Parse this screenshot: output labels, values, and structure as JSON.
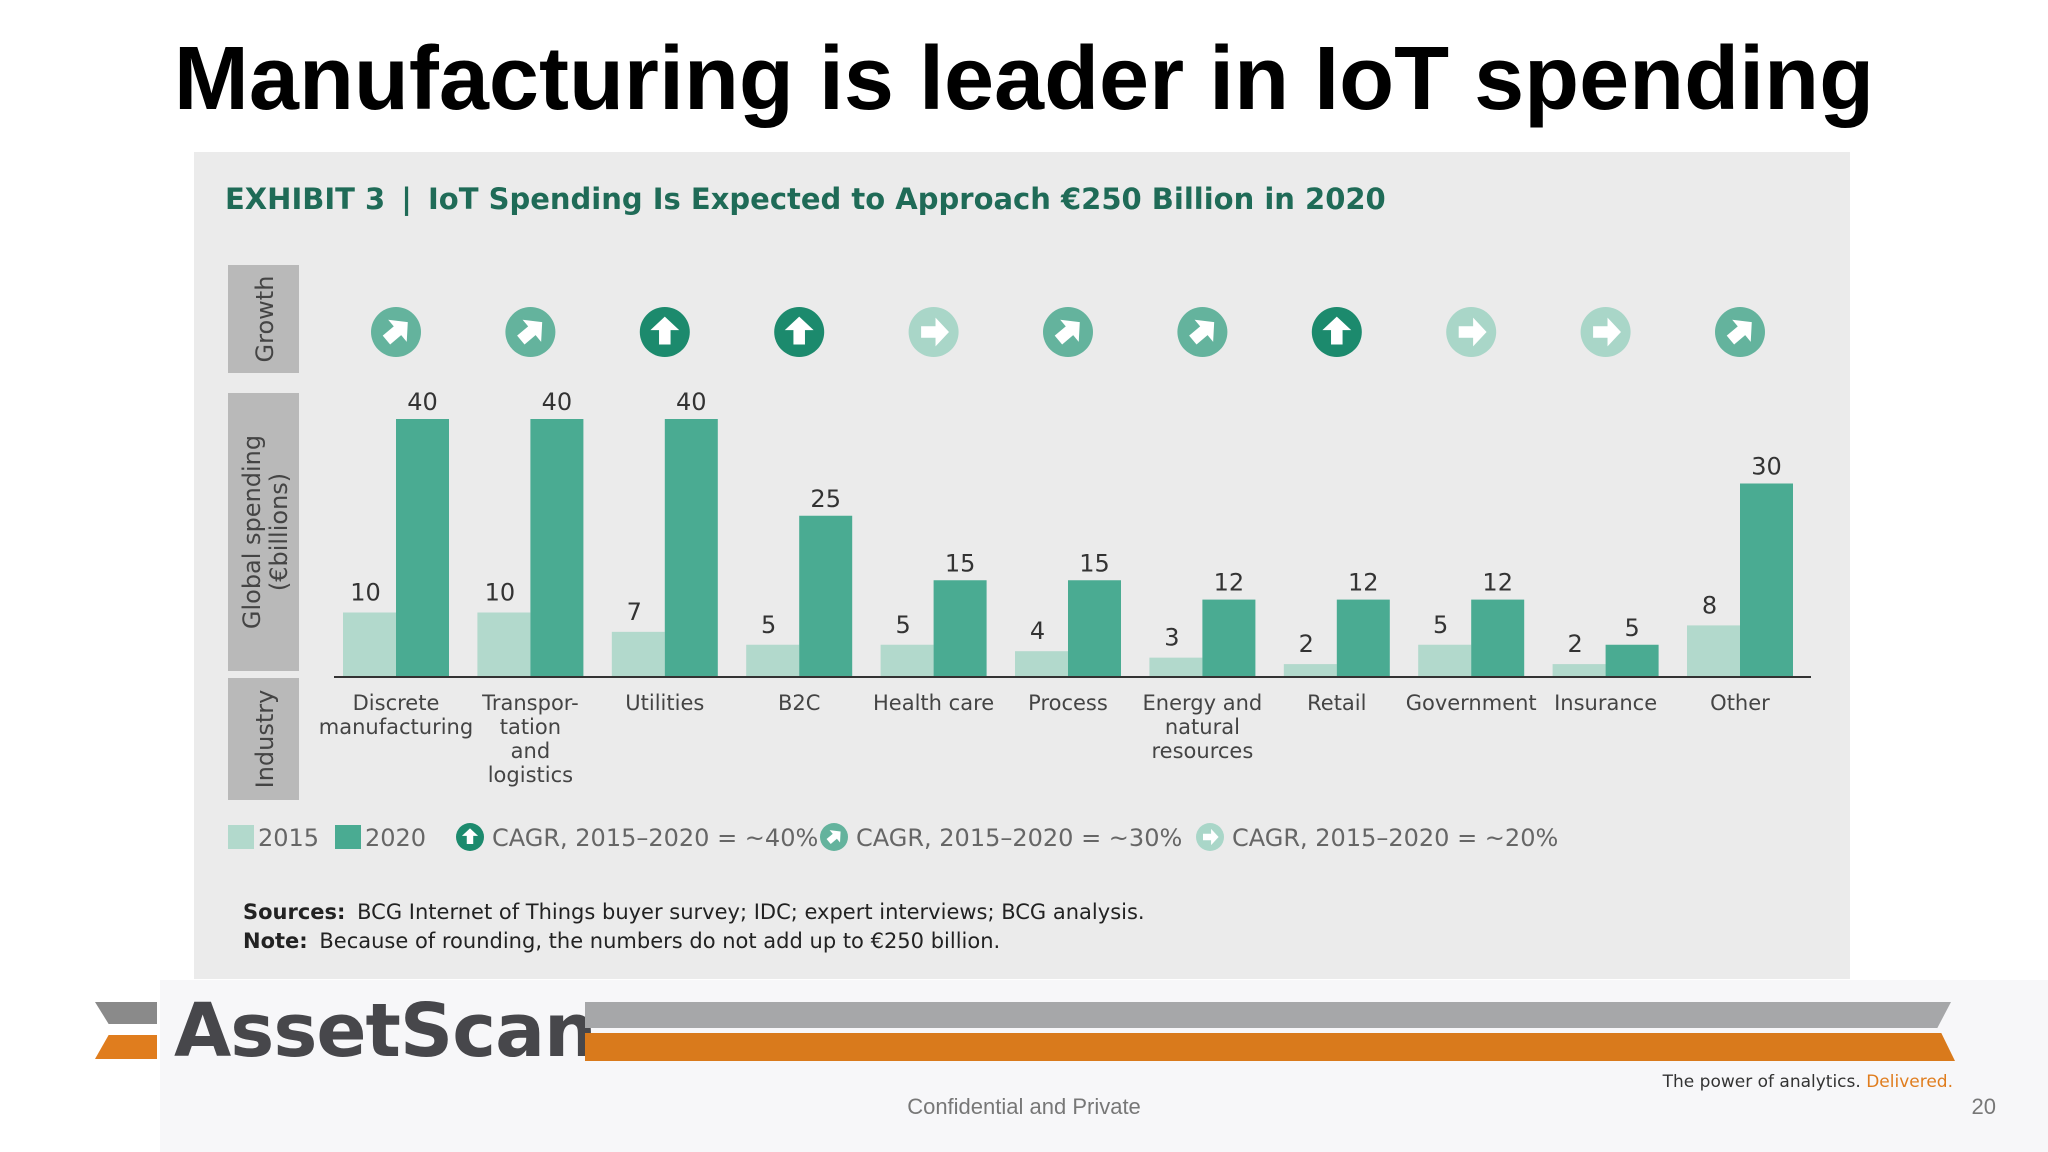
{
  "slide": {
    "title": "Manufacturing is leader in IoT spending",
    "confidential": "Confidential and Private",
    "page_number": "20"
  },
  "brand": {
    "logo_text": "AssetScan",
    "tagline": "The power of analytics.",
    "tagline_accent": "Delivered.",
    "colors": {
      "orange": "#d97a1c",
      "grey": "#a6a7a9",
      "dark": "#47474b"
    }
  },
  "exhibit": {
    "label": "EXHIBIT 3",
    "separator": "|",
    "title": "IoT Spending Is Expected to Approach €250 Billion in 2020",
    "row_labels": {
      "growth": "Growth",
      "spending_line1": "Global spending",
      "spending_line2": "(€billions)",
      "industry": "Industry"
    },
    "sources_label": "Sources:",
    "sources_text": "BCG Internet of Things buyer survey; IDC; expert interviews; BCG analysis.",
    "note_label": "Note:",
    "note_text": "Because of rounding, the numbers do not add up to €250 billion."
  },
  "chart_data": {
    "type": "bar",
    "categories": [
      [
        "Discrete",
        "manufacturing"
      ],
      [
        "Transpor-",
        "tation",
        "and",
        "logistics"
      ],
      [
        "Utilities"
      ],
      [
        "B2C"
      ],
      [
        "Health care"
      ],
      [
        "Process"
      ],
      [
        "Energy and",
        "natural",
        "resources"
      ],
      [
        "Retail"
      ],
      [
        "Government"
      ],
      [
        "Insurance"
      ],
      [
        "Other"
      ]
    ],
    "series": [
      {
        "name": "2015",
        "color": "#b2d9cc",
        "values": [
          10,
          10,
          7,
          5,
          5,
          4,
          3,
          2,
          5,
          2,
          8
        ]
      },
      {
        "name": "2020",
        "color": "#4aab92",
        "values": [
          40,
          40,
          40,
          25,
          15,
          15,
          12,
          12,
          12,
          5,
          30
        ]
      }
    ],
    "growth": [
      "~30%",
      "~30%",
      "~40%",
      "~40%",
      "~20%",
      "~30%",
      "~30%",
      "~40%",
      "~20%",
      "~20%",
      "~30%"
    ],
    "growth_legend": [
      {
        "rate": "~40%",
        "label": "CAGR, 2015–2020 = ~40%",
        "icon": "up-arrow-icon"
      },
      {
        "rate": "~30%",
        "label": "CAGR, 2015–2020 = ~30%",
        "icon": "diagonal-arrow-icon"
      },
      {
        "rate": "~20%",
        "label": "CAGR, 2015–2020 = ~20%",
        "icon": "right-arrow-icon"
      }
    ],
    "ylim": [
      0,
      40
    ],
    "legend_placement": "bottom-left",
    "grid": false
  }
}
